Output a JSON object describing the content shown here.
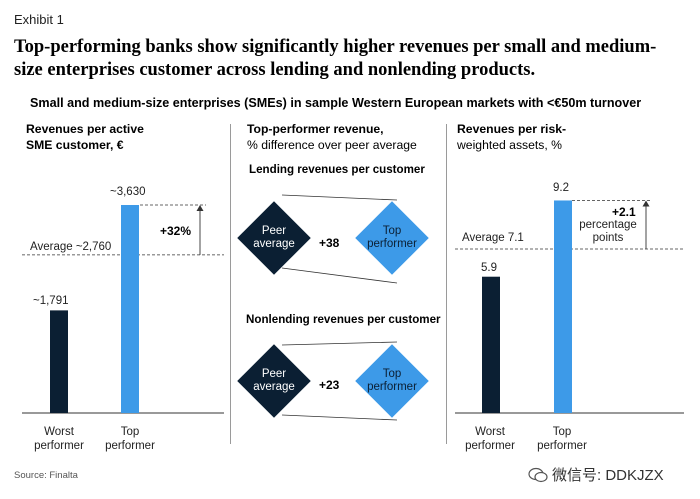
{
  "exhibit": "Exhibit 1",
  "headline": "Top-performing banks show significantly higher revenues per small and medium-size enterprises customer across lending and nonlending products.",
  "subtitle": "Small and medium-size enterprises (SMEs) in sample Western European markets with <€50m turnover",
  "source": "Source: Finalta",
  "watermark": "微信号: DDKJZX",
  "colors": {
    "navy": "#0b1f33",
    "blue": "#3d9ae8",
    "grid": "#9a9a9a"
  },
  "chart_data": [
    {
      "type": "bar",
      "title_line1": "Revenues per active",
      "title_line2": "SME customer, €",
      "categories": [
        "Worst performer",
        "Top performer"
      ],
      "category_lines": [
        [
          "Worst",
          "performer"
        ],
        [
          "Top",
          "performer"
        ]
      ],
      "values": [
        1791,
        3630
      ],
      "value_labels": [
        "~1,791",
        "~3,630"
      ],
      "average": 2760,
      "average_label": "Average ~2,760",
      "difference_label": "+32%",
      "ylim": [
        0,
        3700
      ]
    },
    {
      "type": "diagram",
      "title_line1": "Top-performer revenue,",
      "title_line2": "% difference over peer average",
      "groups": [
        {
          "title": "Lending revenues per customer",
          "left": [
            "Peer",
            "average"
          ],
          "right": [
            "Top",
            "performer"
          ],
          "difference": "+38"
        },
        {
          "title": "Nonlending revenues per customer",
          "left": [
            "Peer",
            "average"
          ],
          "right": [
            "Top",
            "performer"
          ],
          "difference": "+23"
        }
      ]
    },
    {
      "type": "bar",
      "title_line1": "Revenues per risk-",
      "title_line2": "weighted assets, %",
      "categories": [
        "Worst performer",
        "Top performer"
      ],
      "category_lines": [
        [
          "Worst",
          "performer"
        ],
        [
          "Top",
          "performer"
        ]
      ],
      "values": [
        5.9,
        9.2
      ],
      "value_labels": [
        "5.9",
        "9.2"
      ],
      "average": 7.1,
      "average_label": "Average 7.1",
      "difference_label": "+2.1",
      "difference_sub_line1": "percentage",
      "difference_sub_line2": "points",
      "ylim": [
        0,
        9.35
      ]
    }
  ]
}
